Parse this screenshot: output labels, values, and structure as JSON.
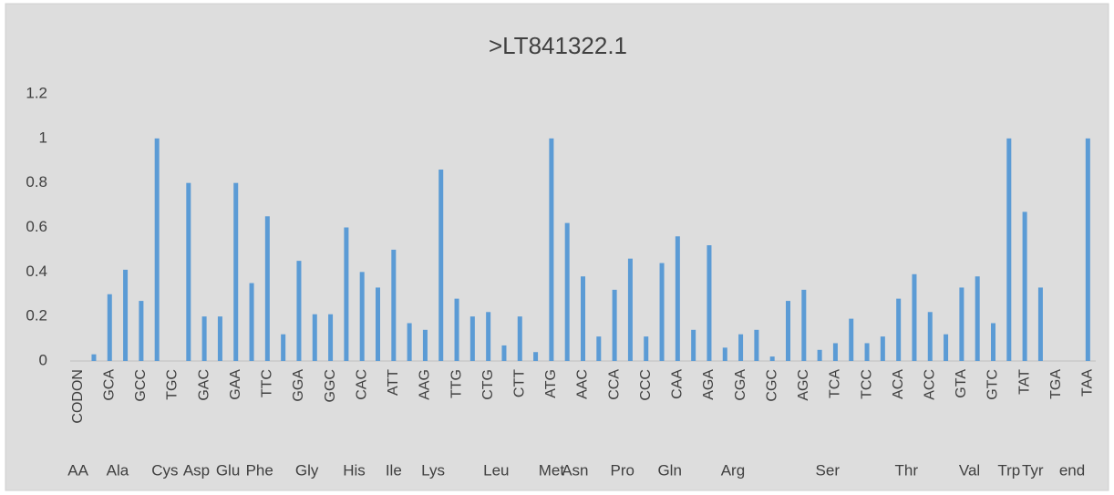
{
  "chart_data": {
    "type": "bar",
    "title": ">LT841322.1",
    "categories": [
      "CODON",
      null,
      "GCA",
      null,
      "GCC",
      null,
      "TGC",
      null,
      "GAC",
      null,
      "GAA",
      null,
      "TTC",
      null,
      "GGA",
      null,
      "GGC",
      null,
      "CAC",
      null,
      "ATT",
      null,
      "AAG",
      null,
      "TTG",
      null,
      "CTG",
      null,
      "CTT",
      null,
      "ATG",
      null,
      "AAC",
      null,
      "CCA",
      null,
      "CCC",
      null,
      "CAA",
      null,
      "AGA",
      null,
      "CGA",
      null,
      "CGC",
      null,
      "AGC",
      null,
      "TCA",
      null,
      "TCC",
      null,
      "ACA",
      null,
      "ACC",
      null,
      "GTA",
      null,
      "GTC",
      null,
      "TAT",
      null,
      "TGA",
      null,
      "TAA"
    ],
    "values": [
      null,
      0.03,
      0.3,
      0.41,
      0.27,
      1.0,
      null,
      0.8,
      0.2,
      0.2,
      0.8,
      0.35,
      0.65,
      0.12,
      0.45,
      0.21,
      0.21,
      0.6,
      0.4,
      0.33,
      0.5,
      0.17,
      0.14,
      0.86,
      0.28,
      0.2,
      0.22,
      0.07,
      0.2,
      0.04,
      1.0,
      0.62,
      0.38,
      0.11,
      0.32,
      0.46,
      0.11,
      0.44,
      0.56,
      0.14,
      0.52,
      0.06,
      0.12,
      0.14,
      0.02,
      0.27,
      0.32,
      0.05,
      0.08,
      0.19,
      0.08,
      0.11,
      0.28,
      0.39,
      0.22,
      0.12,
      0.33,
      0.38,
      0.17,
      1.0,
      0.67,
      0.33,
      null,
      null,
      1.0
    ],
    "groups": [
      {
        "label": "AA",
        "count": 1
      },
      {
        "label": "Ala",
        "count": 4
      },
      {
        "label": "Cys",
        "count": 2
      },
      {
        "label": "Asp",
        "count": 2
      },
      {
        "label": "Glu",
        "count": 2
      },
      {
        "label": "Phe",
        "count": 2
      },
      {
        "label": "Gly",
        "count": 4
      },
      {
        "label": "His",
        "count": 2
      },
      {
        "label": "Ile",
        "count": 3
      },
      {
        "label": "Lys",
        "count": 2
      },
      {
        "label": "Leu",
        "count": 6
      },
      {
        "label": "Met",
        "count": 1
      },
      {
        "label": "Asn",
        "count": 2
      },
      {
        "label": "Pro",
        "count": 4
      },
      {
        "label": "Gln",
        "count": 2
      },
      {
        "label": "Arg",
        "count": 6
      },
      {
        "label": "Ser",
        "count": 6
      },
      {
        "label": "Thr",
        "count": 4
      },
      {
        "label": "Val",
        "count": 4
      },
      {
        "label": "Trp",
        "count": 1
      },
      {
        "label": "Tyr",
        "count": 2
      },
      {
        "label": "end",
        "count": 3
      }
    ],
    "color": "#5b9bd5",
    "ylim": [
      0,
      1.2
    ],
    "yticks": [
      0,
      0.2,
      0.4,
      0.6,
      0.8,
      1,
      1.2
    ],
    "grid": false
  }
}
